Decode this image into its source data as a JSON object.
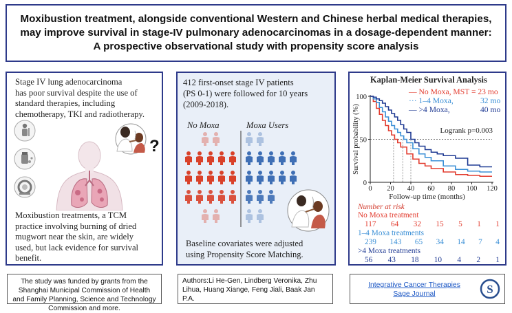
{
  "title": {
    "line1": "Moxibustion treatment, alongside conventional Western and Chinese herbal medical therapies,",
    "line2": "may improve survival in stage-IV pulmonary adenocarcinomas in a dosage-dependent manner:",
    "line3": "A prospective observational study with propensity score analysis"
  },
  "left_panel": {
    "intro_lines": [
      "Stage IV lung adenocarcinoma",
      "has poor survival despite the use of",
      "standard therapies, including",
      "chemotherapy, TKI and radiotherapy."
    ],
    "question_mark": "?",
    "outro_lines": [
      "Moxibustion treatments, a TCM",
      "practice involving burning of dried",
      "mugwort near the skin, are widely",
      "used, but lack evidence for survival",
      "benefit."
    ]
  },
  "middle_panel": {
    "intro_lines": [
      "412 first-onset stage IV patients",
      "(PS 0-1) were followed for 10 years",
      "(2009-2018)."
    ],
    "group_no_moxa": "No Moxa",
    "group_moxa": "Moxa Users",
    "outro_lines": [
      "Baseline covariates were adjusted",
      "using Propensity Score Matching."
    ],
    "colors": {
      "no_moxa": "#d9412a",
      "moxa": "#3f6fb5",
      "background": "#e9eff8"
    }
  },
  "chart_data": {
    "type": "line",
    "title": "Kaplan-Meier Survival Analysis",
    "xlabel": "Follow-up time (months)",
    "ylabel": "Survival probability (%)",
    "xlim": [
      0,
      120
    ],
    "ylim": [
      0,
      100
    ],
    "xticks": [
      "0",
      "20",
      "40",
      "60",
      "80",
      "100",
      "120"
    ],
    "yticks": [
      "0",
      "50",
      "100"
    ],
    "annotation": "Logrank p=0.003",
    "legend": [
      {
        "marker": "—",
        "label": "No Moxa, MST = 23 mo",
        "color": "#e23b2e"
      },
      {
        "marker": "···",
        "label": "1–4 Moxa,",
        "value": "32 mo",
        "color": "#3a8fd6"
      },
      {
        "marker": "—",
        "label": ">4 Moxa,",
        "value": "40 mo",
        "color": "#1f3a93"
      }
    ],
    "median_lines_x": [
      23,
      32,
      40
    ],
    "series": [
      {
        "name": "No Moxa",
        "color": "#e23b2e",
        "x": [
          0,
          3,
          6,
          9,
          12,
          15,
          18,
          21,
          24,
          27,
          30,
          36,
          42,
          48,
          54,
          60,
          72,
          84,
          96,
          108,
          120
        ],
        "y": [
          100,
          94,
          86,
          79,
          72,
          66,
          60,
          55,
          50,
          46,
          41,
          33,
          27,
          22,
          19,
          16,
          12,
          9,
          8,
          7,
          7
        ]
      },
      {
        "name": "1–4 Moxa",
        "color": "#3a8fd6",
        "x": [
          0,
          3,
          6,
          9,
          12,
          15,
          18,
          21,
          24,
          27,
          30,
          33,
          36,
          42,
          48,
          54,
          60,
          72,
          84,
          96,
          108,
          120
        ],
        "y": [
          100,
          97,
          93,
          87,
          82,
          76,
          71,
          66,
          62,
          58,
          54,
          50,
          46,
          39,
          33,
          29,
          25,
          19,
          15,
          13,
          12,
          12
        ]
      },
      {
        "name": ">4 Moxa",
        "color": "#1f3a93",
        "x": [
          0,
          3,
          6,
          9,
          12,
          15,
          18,
          21,
          24,
          27,
          30,
          33,
          36,
          40,
          44,
          48,
          54,
          60,
          66,
          72,
          78,
          84,
          96,
          108,
          120
        ],
        "y": [
          100,
          99,
          97,
          95,
          92,
          88,
          84,
          80,
          76,
          72,
          67,
          62,
          58,
          50,
          46,
          42,
          38,
          35,
          33,
          31,
          31,
          28,
          20,
          18,
          18
        ]
      }
    ]
  },
  "risk_table": {
    "header": "Number at risk",
    "groups": [
      {
        "label": "No Moxa treatment",
        "color": "#e23b2e",
        "values": [
          "117",
          "64",
          "32",
          "15",
          "5",
          "1",
          "1"
        ]
      },
      {
        "label": "1–4 Moxa treatments",
        "color": "#3a8fd6",
        "values": [
          "239",
          "143",
          "65",
          "34",
          "14",
          "7",
          "4"
        ]
      },
      {
        "label": ">4 Moxa treatments",
        "color": "#1f3a93",
        "values": [
          "56",
          "43",
          "18",
          "10",
          "4",
          "2",
          "1"
        ]
      }
    ]
  },
  "footer": {
    "funding": "The study was funded by grants from the Shanghai Municipal Commission of Health and Family Planning, Science and Technology Commission and more.",
    "authors": "Authors:Li He-Gen, Lindberg Veronika, Zhu Lihua, Huang Xiange, Feng Jiali, Baak Jan P.A.",
    "journal_line1": "Integrative Cancer Therapies",
    "journal_line2": "Sage Journal",
    "logo_letter": "S"
  }
}
